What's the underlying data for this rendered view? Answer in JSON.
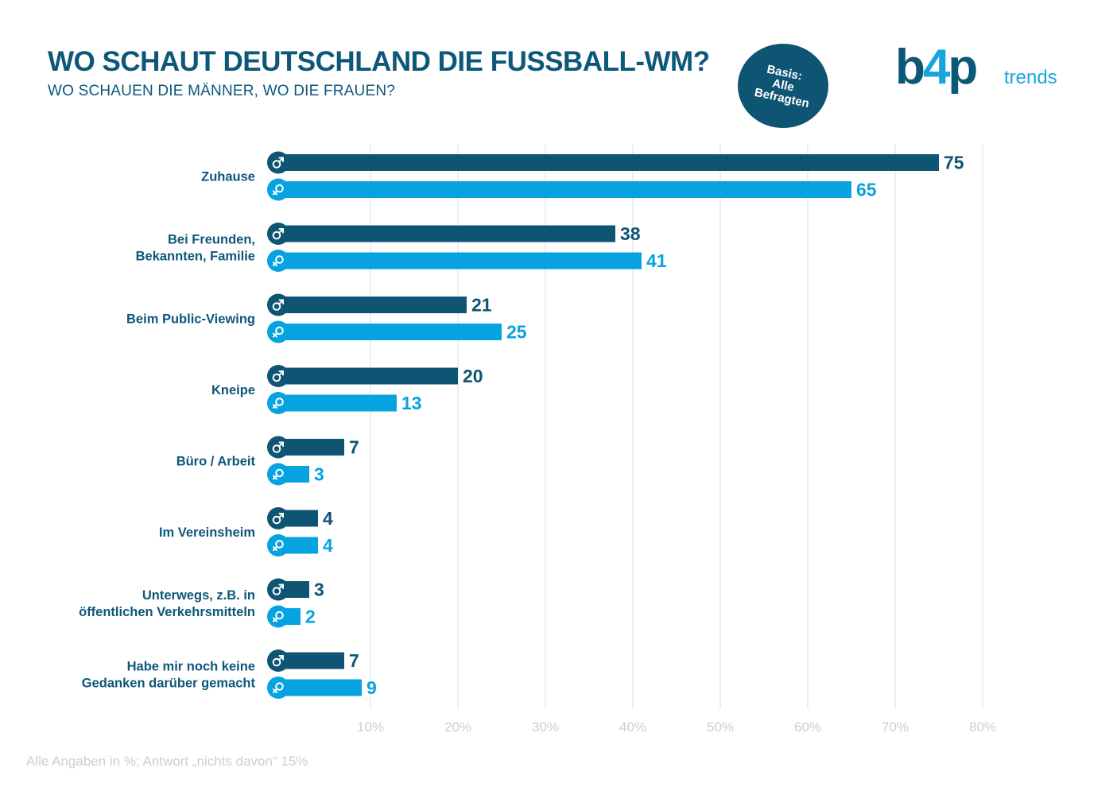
{
  "header": {
    "title": "WO SCHAUT DEUTSCHLAND DIE FUSSBALL-WM?",
    "subtitle": "WO SCHAUEN DIE MÄNNER, WO DIE FRAUEN?"
  },
  "badge": {
    "line1": "Basis:",
    "line2": "Alle",
    "line3": "Befragten"
  },
  "logo": {
    "brand_b": "b",
    "brand_4": "4",
    "brand_p": "p",
    "suffix": "trends"
  },
  "footnote": "Alle Angaben in %; Antwort „nichts davon“ 15%",
  "colors": {
    "male": "#0e5473",
    "female": "#06a3e0",
    "grid": "#eceff2",
    "tick": "#c8cfd6",
    "label": "#0d5779"
  },
  "icons": {
    "male": "male-symbol-icon",
    "female": "female-symbol-icon"
  },
  "chart_data": {
    "type": "bar",
    "orientation": "horizontal",
    "categories": [
      [
        "Zuhause"
      ],
      [
        "Bei Freunden,",
        "Bekannten, Familie"
      ],
      [
        "Beim Public-Viewing"
      ],
      [
        "Kneipe"
      ],
      [
        "Büro / Arbeit"
      ],
      [
        "Im Vereinsheim"
      ],
      [
        "Unterwegs, z.B. in",
        "öffentlichen Verkehrsmitteln"
      ],
      [
        "Habe mir noch keine",
        "Gedanken darüber gemacht"
      ]
    ],
    "series": [
      {
        "key": "male",
        "values": [
          75,
          38,
          21,
          20,
          7,
          4,
          3,
          7
        ]
      },
      {
        "key": "female",
        "values": [
          65,
          41,
          25,
          13,
          3,
          4,
          2,
          9
        ]
      }
    ],
    "xlim": [
      0,
      80
    ],
    "xticks": [
      10,
      20,
      30,
      40,
      50,
      60,
      70,
      80
    ],
    "xtick_labels": [
      "10%",
      "20%",
      "30%",
      "40%",
      "50%",
      "60%",
      "70%",
      "80%"
    ],
    "grid": true,
    "legend": "none"
  }
}
